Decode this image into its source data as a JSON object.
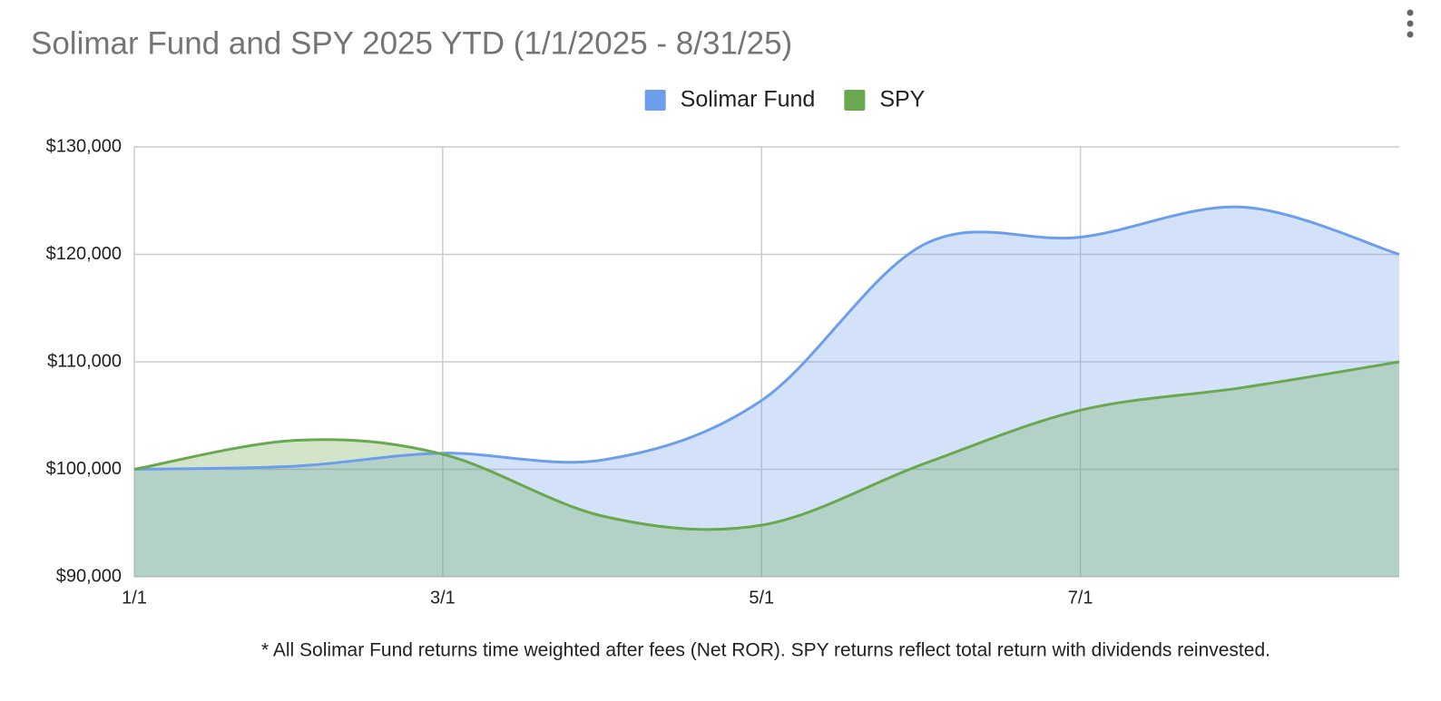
{
  "chart_data": {
    "type": "area",
    "title": "Solimar Fund and SPY 2025 YTD (1/1/2025 - 8/31/25)",
    "note": "* All Solimar Fund returns time weighted after fees (Net ROR). SPY returns reflect total return with dividends reinvested.",
    "x": [
      "1/1",
      "2/1",
      "3/1",
      "4/1",
      "5/1",
      "6/1",
      "7/1",
      "8/1",
      "8/31"
    ],
    "xlim": [
      "1/1",
      "8/31"
    ],
    "xticks": [
      "1/1",
      "3/1",
      "5/1",
      "7/1"
    ],
    "series": [
      {
        "name": "Solimar Fund",
        "color": "#6d9eeb",
        "values": [
          100000,
          100300,
          101500,
          100900,
          106400,
          120900,
          121600,
          124400,
          120000
        ]
      },
      {
        "name": "SPY",
        "color": "#6aa84f",
        "values": [
          100000,
          102700,
          101400,
          95600,
          94800,
          100500,
          105500,
          107600,
          110000
        ]
      }
    ],
    "ylim": [
      90000,
      130000
    ],
    "yticks": [
      {
        "value": 90000,
        "label": "$90,000"
      },
      {
        "value": 100000,
        "label": "$100,000"
      },
      {
        "value": 110000,
        "label": "$110,000"
      },
      {
        "value": 120000,
        "label": "$120,000"
      },
      {
        "value": 130000,
        "label": "$130,000"
      }
    ],
    "grid": true,
    "legend": "top"
  }
}
